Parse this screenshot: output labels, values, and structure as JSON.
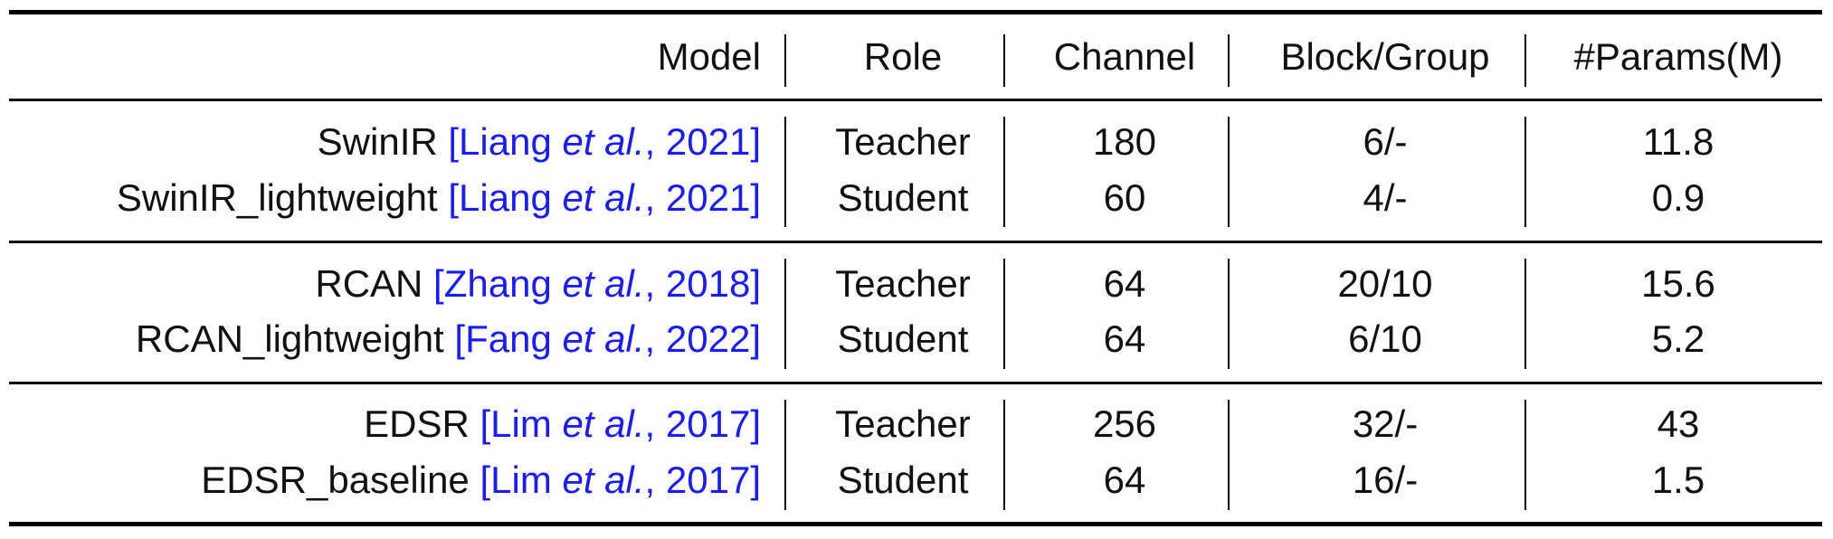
{
  "header": {
    "model": "Model",
    "role": "Role",
    "channel": "Channel",
    "block": "Block/Group",
    "params": "#Params(M)"
  },
  "rows": [
    {
      "name": "SwinIR",
      "cite_pre": "[Liang ",
      "cite_em": "et al.",
      "cite_post": ", 2021]",
      "role": "Teacher",
      "channel": "180",
      "block": "6/-",
      "params": "11.8"
    },
    {
      "name": "SwinIR_lightweight",
      "cite_pre": "[Liang ",
      "cite_em": "et al.",
      "cite_post": ", 2021]",
      "role": "Student",
      "channel": "60",
      "block": "4/-",
      "params": "0.9"
    },
    {
      "name": "RCAN",
      "cite_pre": "[Zhang ",
      "cite_em": "et al.",
      "cite_post": ", 2018]",
      "role": "Teacher",
      "channel": "64",
      "block": "20/10",
      "params": "15.6"
    },
    {
      "name": "RCAN_lightweight",
      "cite_pre": "[Fang ",
      "cite_em": "et al.",
      "cite_post": ", 2022]",
      "role": "Student",
      "channel": "64",
      "block": "6/10",
      "params": "5.2"
    },
    {
      "name": "EDSR",
      "cite_pre": "[Lim ",
      "cite_em": "et al.",
      "cite_post": ", 2017]",
      "role": "Teacher",
      "channel": "256",
      "block": "32/-",
      "params": "43"
    },
    {
      "name": "EDSR_baseline",
      "cite_pre": "[Lim ",
      "cite_em": "et al.",
      "cite_post": ", 2017]",
      "role": "Student",
      "channel": "64",
      "block": "16/-",
      "params": "1.5"
    }
  ],
  "colors": {
    "citation": "#1a1aff",
    "rule": "#000000"
  }
}
